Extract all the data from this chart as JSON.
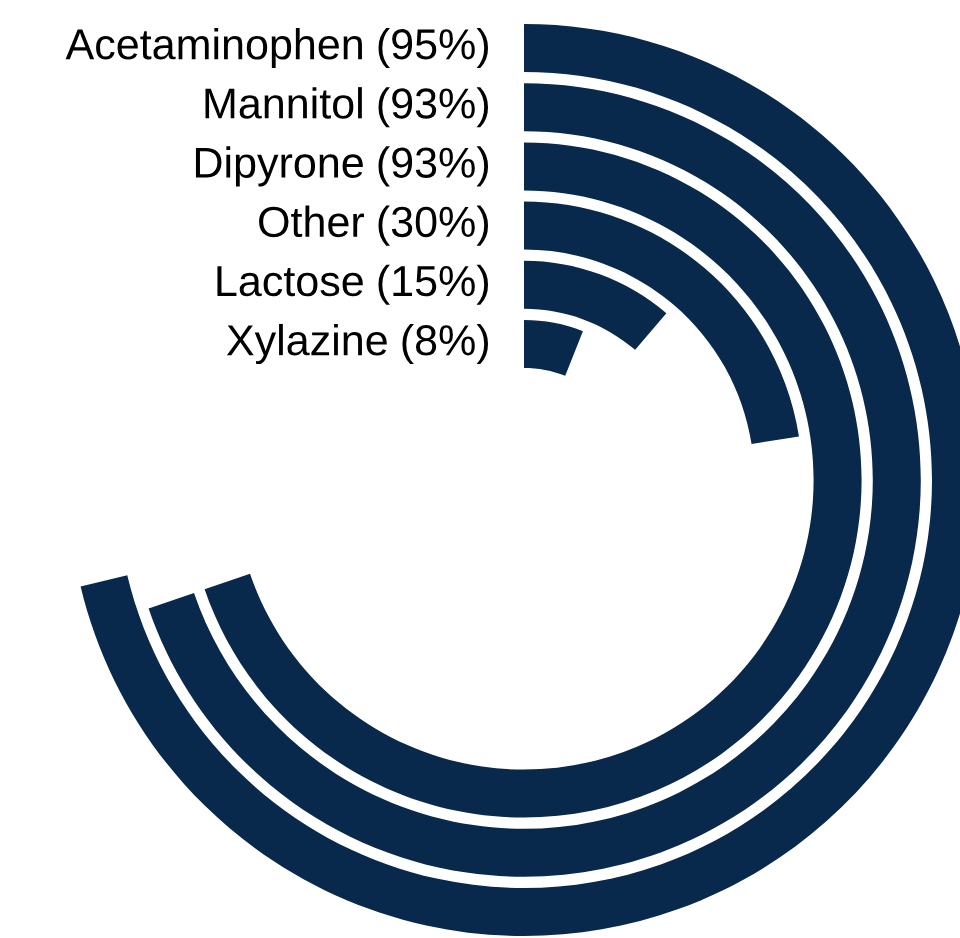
{
  "chart_data": {
    "type": "other",
    "categories": [
      "Acetaminophen",
      "Mannitol",
      "Dipyrone",
      "Other",
      "Lactose",
      "Xylazine"
    ],
    "values": [
      95,
      93,
      93,
      30,
      15,
      8
    ],
    "value_labels": [
      "(95%)",
      "(93%)",
      "(93%)",
      "(30%)",
      "(15%)",
      "(8%)"
    ],
    "color": "#08284c"
  }
}
